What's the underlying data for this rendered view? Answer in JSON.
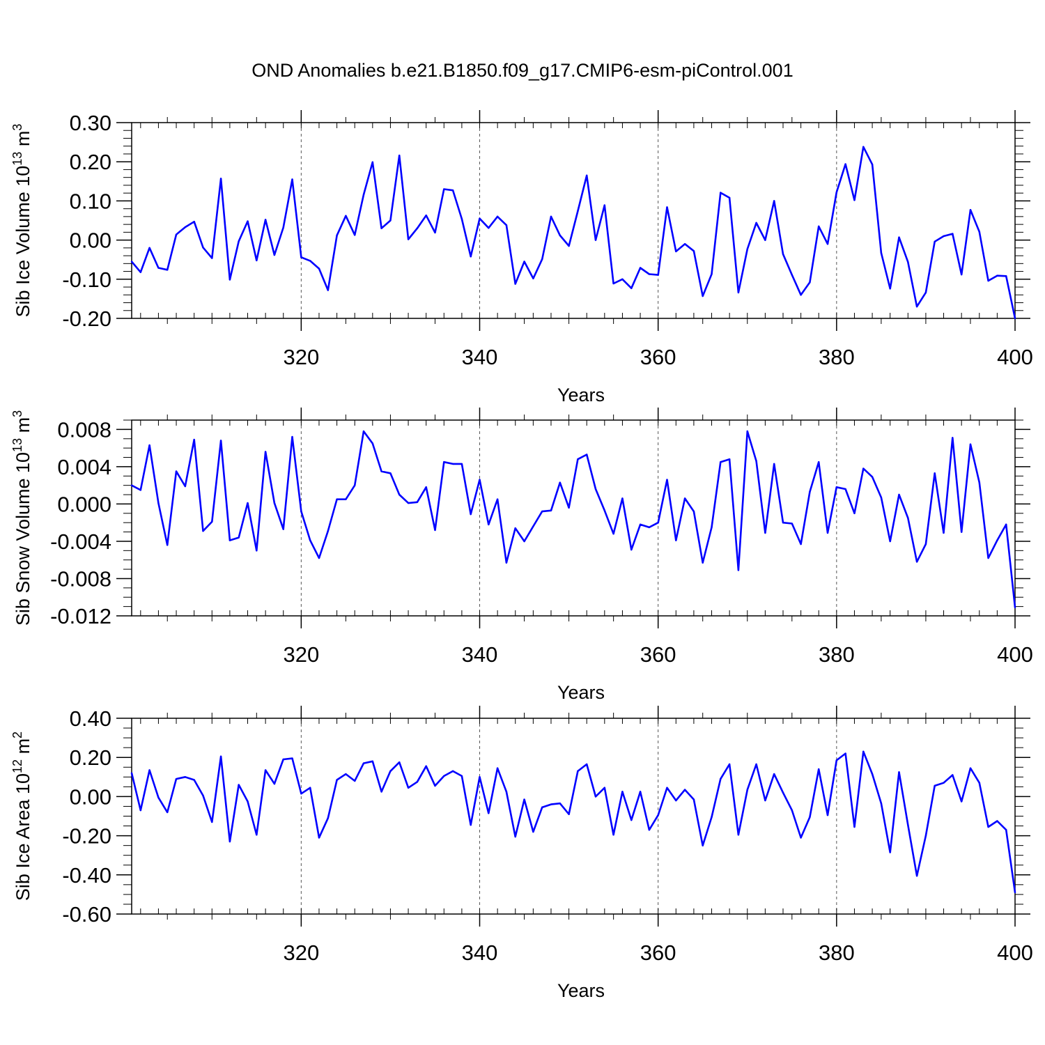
{
  "title": "OND Anomalies b.e21.B1850.f09_g17.CMIP6-esm-piControl.001",
  "line_color": "#0000ff",
  "chart_data": [
    {
      "type": "line",
      "xlabel": "Years",
      "ylabel_main": "Sib Ice Volume 10",
      "ylabel_exp": "13",
      "ylabel_unit": " m",
      "ylabel_unit_exp": "3",
      "xlim": [
        301,
        400
      ],
      "ylim": [
        -0.2,
        0.3
      ],
      "x_ticks": [
        320,
        340,
        360,
        380,
        400
      ],
      "x_tick_labels": [
        "320",
        "340",
        "360",
        "380",
        "400"
      ],
      "y_ticks": [
        0.3,
        0.2,
        0.1,
        0.0,
        -0.1,
        -0.2
      ],
      "y_tick_labels": [
        "0.30",
        "0.20",
        "0.10",
        "0.00",
        "-0.10",
        "-0.20"
      ],
      "y_minor_step": 0.02,
      "vertical_gridlines": [
        320,
        340,
        360,
        380
      ],
      "x_start": 301,
      "values": [
        -0.055,
        -0.082,
        -0.02,
        -0.071,
        -0.076,
        0.014,
        0.033,
        0.047,
        -0.019,
        -0.046,
        0.157,
        -0.101,
        -0.003,
        0.048,
        -0.052,
        0.052,
        -0.038,
        0.032,
        0.155,
        -0.044,
        -0.053,
        -0.073,
        -0.128,
        0.012,
        0.062,
        0.013,
        0.116,
        0.199,
        0.03,
        0.05,
        0.216,
        0.002,
        0.03,
        0.063,
        0.019,
        0.13,
        0.127,
        0.054,
        -0.042,
        0.055,
        0.031,
        0.06,
        0.038,
        -0.112,
        -0.055,
        -0.098,
        -0.049,
        0.06,
        0.012,
        -0.015,
        0.074,
        0.165,
        0.0,
        0.089,
        -0.111,
        -0.1,
        -0.123,
        -0.071,
        -0.087,
        -0.089,
        0.084,
        -0.029,
        -0.01,
        -0.028,
        -0.143,
        -0.087,
        0.121,
        0.108,
        -0.134,
        -0.023,
        0.044,
        0.0,
        0.1,
        -0.036,
        -0.089,
        -0.14,
        -0.108,
        0.035,
        -0.01,
        0.122,
        0.194,
        0.102,
        0.238,
        0.193,
        -0.033,
        -0.124,
        0.007,
        -0.056,
        -0.17,
        -0.134,
        -0.004,
        0.01,
        0.016,
        -0.088,
        0.077,
        0.021,
        -0.104,
        -0.091,
        -0.092,
        -0.2
      ]
    },
    {
      "type": "line",
      "xlabel": "Years",
      "ylabel_main": "Sib Snow Volume 10",
      "ylabel_exp": "13",
      "ylabel_unit": " m",
      "ylabel_unit_exp": "3",
      "xlim": [
        301,
        400
      ],
      "ylim": [
        -0.012,
        0.009
      ],
      "x_ticks": [
        320,
        340,
        360,
        380,
        400
      ],
      "x_tick_labels": [
        "320",
        "340",
        "360",
        "380",
        "400"
      ],
      "y_ticks": [
        0.008,
        0.004,
        0.0,
        -0.004,
        -0.008,
        -0.012
      ],
      "y_tick_labels": [
        "0.008",
        "0.004",
        "0.000",
        "-0.004",
        "-0.008",
        "-0.012"
      ],
      "y_minor_step": 0.001,
      "vertical_gridlines": [
        320,
        340,
        360,
        380
      ],
      "x_start": 301,
      "values": [
        0.002,
        0.0015,
        0.0063,
        0.0001,
        -0.0044,
        0.0035,
        0.0019,
        0.0069,
        -0.0029,
        -0.0019,
        0.0068,
        -0.0039,
        -0.0036,
        0.0001,
        -0.005,
        0.0056,
        0.0001,
        -0.0027,
        0.0072,
        -0.0008,
        -0.0039,
        -0.0058,
        -0.0029,
        0.0005,
        0.0005,
        0.002,
        0.0078,
        0.0065,
        0.0035,
        0.0033,
        0.001,
        0.0001,
        0.0002,
        0.0018,
        -0.0028,
        0.0045,
        0.0043,
        0.0043,
        -0.0011,
        0.0026,
        -0.0022,
        0.0005,
        -0.0063,
        -0.0026,
        -0.004,
        -0.0024,
        -0.0008,
        -0.0007,
        0.0023,
        -0.0004,
        0.0048,
        0.0053,
        0.0016,
        -0.0007,
        -0.0032,
        0.0006,
        -0.0049,
        -0.0022,
        -0.0025,
        -0.002,
        0.0026,
        -0.0039,
        0.0006,
        -0.0008,
        -0.0063,
        -0.0025,
        0.0045,
        0.0048,
        -0.0071,
        0.0078,
        0.0046,
        -0.0031,
        0.0043,
        -0.002,
        -0.0021,
        -0.0043,
        0.0013,
        0.0045,
        -0.0031,
        0.0018,
        0.0016,
        -0.001,
        0.0038,
        0.0029,
        0.0007,
        -0.004,
        0.001,
        -0.0015,
        -0.0062,
        -0.0043,
        0.0033,
        -0.0031,
        0.0071,
        -0.003,
        0.0064,
        0.0023,
        -0.0058,
        -0.0039,
        -0.0022,
        -0.0111
      ]
    },
    {
      "type": "line",
      "xlabel": "Years",
      "ylabel_main": "Sib Ice Area 10",
      "ylabel_exp": "12",
      "ylabel_unit": " m",
      "ylabel_unit_exp": "2",
      "xlim": [
        301,
        400
      ],
      "ylim": [
        -0.6,
        0.4
      ],
      "x_ticks": [
        320,
        340,
        360,
        380,
        400
      ],
      "x_tick_labels": [
        "320",
        "340",
        "360",
        "380",
        "400"
      ],
      "y_ticks": [
        0.4,
        0.2,
        0.0,
        -0.2,
        -0.4,
        -0.6
      ],
      "y_tick_labels": [
        "0.40",
        "0.20",
        "0.00",
        "-0.20",
        "-0.40",
        "-0.60"
      ],
      "y_minor_step": 0.05,
      "vertical_gridlines": [
        320,
        340,
        360,
        380
      ],
      "x_start": 301,
      "values": [
        0.12,
        -0.07,
        0.135,
        -0.005,
        -0.08,
        0.09,
        0.1,
        0.085,
        0.005,
        -0.13,
        0.205,
        -0.23,
        0.06,
        -0.025,
        -0.195,
        0.135,
        0.065,
        0.19,
        0.195,
        0.015,
        0.045,
        -0.21,
        -0.11,
        0.085,
        0.115,
        0.08,
        0.17,
        0.18,
        0.025,
        0.13,
        0.175,
        0.045,
        0.075,
        0.155,
        0.055,
        0.105,
        0.13,
        0.105,
        -0.145,
        0.1,
        -0.085,
        0.145,
        0.025,
        -0.205,
        -0.015,
        -0.18,
        -0.055,
        -0.04,
        -0.035,
        -0.09,
        0.13,
        0.165,
        0.0,
        0.045,
        -0.195,
        0.025,
        -0.12,
        0.025,
        -0.17,
        -0.095,
        0.045,
        -0.02,
        0.035,
        -0.015,
        -0.25,
        -0.105,
        0.09,
        0.165,
        -0.195,
        0.035,
        0.165,
        -0.02,
        0.115,
        0.02,
        -0.07,
        -0.21,
        -0.105,
        0.14,
        -0.095,
        0.185,
        0.22,
        -0.155,
        0.23,
        0.115,
        -0.035,
        -0.285,
        0.125,
        -0.145,
        -0.405,
        -0.2,
        0.055,
        0.07,
        0.11,
        -0.025,
        0.145,
        0.07,
        -0.155,
        -0.125,
        -0.17,
        -0.49
      ]
    }
  ]
}
